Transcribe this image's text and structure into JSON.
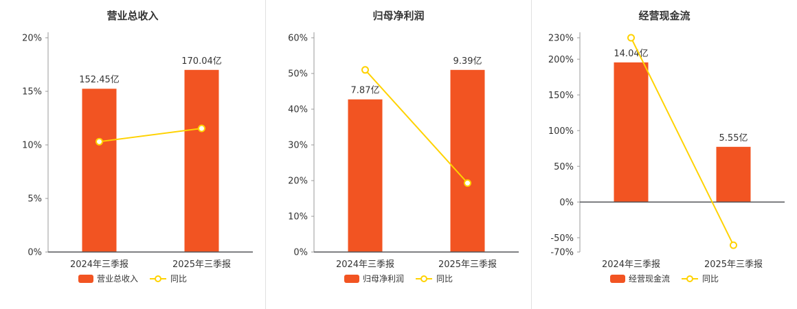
{
  "colors": {
    "bar": "#f25422",
    "line": "#ffd200",
    "axis": "#999999",
    "baseline": "#54565a",
    "text": "#333333",
    "divider": "#e0e0e0",
    "background": "#ffffff"
  },
  "chart_data": [
    {
      "type": "bar",
      "title": "营业总收入",
      "categories": [
        "2024年三季报",
        "2025年三季报"
      ],
      "series": [
        {
          "name": "营业总收入",
          "kind": "bar",
          "unit": "亿",
          "values": [
            152.45,
            170.04
          ],
          "labels": [
            "152.45亿",
            "170.04亿"
          ]
        },
        {
          "name": "同比",
          "kind": "line",
          "unit": "%",
          "values": [
            10.3,
            11.54
          ]
        }
      ],
      "xlabel": "",
      "ylabel": "",
      "ylim": [
        0,
        20
      ],
      "ytick_values": [
        0,
        5,
        10,
        15,
        20
      ],
      "ytick_labels": [
        "0%",
        "5%",
        "10%",
        "15%",
        "20%"
      ],
      "grid": false,
      "legend_position": "bottom"
    },
    {
      "type": "bar",
      "title": "归母净利润",
      "categories": [
        "2024年三季报",
        "2025年三季报"
      ],
      "series": [
        {
          "name": "归母净利润",
          "kind": "bar",
          "unit": "亿",
          "values": [
            7.87,
            9.39
          ],
          "labels": [
            "7.87亿",
            "9.39亿"
          ]
        },
        {
          "name": "同比",
          "kind": "line",
          "unit": "%",
          "values": [
            51.0,
            19.31
          ]
        }
      ],
      "xlabel": "",
      "ylabel": "",
      "ylim": [
        0,
        60
      ],
      "ytick_values": [
        0,
        10,
        20,
        30,
        40,
        50,
        60
      ],
      "ytick_labels": [
        "0%",
        "10%",
        "20%",
        "30%",
        "40%",
        "50%",
        "60%"
      ],
      "grid": false,
      "legend_position": "bottom"
    },
    {
      "type": "bar",
      "title": "经营现金流",
      "categories": [
        "2024年三季报",
        "2025年三季报"
      ],
      "series": [
        {
          "name": "经营现金流",
          "kind": "bar",
          "unit": "亿",
          "values": [
            14.04,
            5.55
          ],
          "labels": [
            "14.04亿",
            "5.55亿"
          ]
        },
        {
          "name": "同比",
          "kind": "line",
          "unit": "%",
          "values": [
            230.0,
            -60.47
          ]
        }
      ],
      "xlabel": "",
      "ylabel": "",
      "ylim": [
        -70,
        230
      ],
      "ytick_values": [
        -70,
        -50,
        0,
        50,
        100,
        150,
        200,
        230
      ],
      "ytick_labels": [
        "-70%",
        "-50%",
        "0%",
        "50%",
        "100%",
        "150%",
        "200%",
        "230%"
      ],
      "grid": false,
      "legend_position": "bottom"
    }
  ]
}
